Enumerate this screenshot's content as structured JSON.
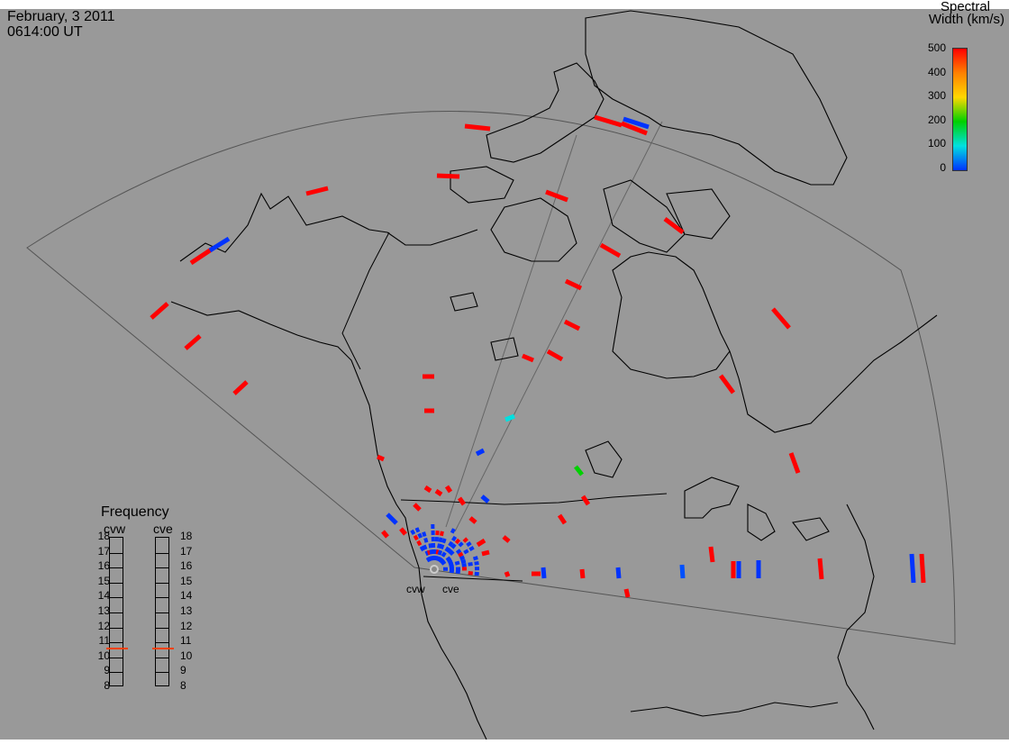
{
  "header": {
    "date": "February, 3 2011",
    "time": "0614:00 UT"
  },
  "colorbar": {
    "title_line1": "Spectral",
    "title_line2": "Width (km/s)",
    "ticks": [
      "500",
      "400",
      "300",
      "200",
      "100",
      "0"
    ],
    "colors": [
      "#ff0000",
      "#ff8000",
      "#ffd700",
      "#00d000",
      "#00e0e0",
      "#0033ff"
    ]
  },
  "frequency": {
    "title": "Frequency",
    "radars": [
      "cvw",
      "cve"
    ],
    "ticks": [
      "18",
      "17",
      "16",
      "15",
      "14",
      "13",
      "12",
      "11",
      "10",
      "9",
      "8"
    ],
    "cvw_mhz": 10.6,
    "cve_mhz": 10.6,
    "marker_color": "#ff4000"
  },
  "sites": {
    "cvw_label": "cvw",
    "cve_label": "cve"
  },
  "colors": {
    "background": "#999999",
    "fov": "#555555",
    "land": "#000000"
  }
}
